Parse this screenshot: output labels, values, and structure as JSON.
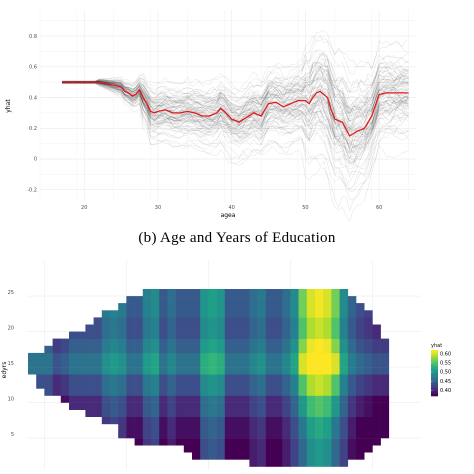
{
  "caption": "(b) Age and Years of Education",
  "chart_data": [
    {
      "type": "line",
      "description_panel": "top",
      "xlabel": "agea",
      "ylabel": "yhat",
      "xlim": [
        14,
        65
      ],
      "ylim": [
        -0.28,
        0.97
      ],
      "x_ticks": [
        20,
        30,
        40,
        50,
        60
      ],
      "y_ticks": [
        -0.2,
        0.0,
        0.2,
        0.4,
        0.6,
        0.8
      ],
      "y_tick_labels": [
        "-0.2",
        "0",
        "0.2",
        "0.4",
        "0.6",
        "0.8"
      ],
      "grid": true,
      "series": [
        {
          "role": "average",
          "color": "#e41a1c",
          "x": [
            17,
            20,
            22,
            23,
            24,
            25,
            25.5,
            26,
            26.5,
            27,
            27.5,
            28,
            28.5,
            29,
            29.5,
            30,
            31,
            32,
            33,
            34,
            35,
            36,
            37,
            38,
            38.5,
            39,
            40,
            41,
            42,
            43,
            44,
            45,
            46,
            47,
            48,
            49,
            50,
            50.5,
            51,
            51.5,
            52,
            52.5,
            53,
            53.5,
            54,
            55,
            56,
            57,
            58,
            59,
            60,
            61,
            62,
            63,
            64
          ],
          "y": [
            0.5,
            0.5,
            0.5,
            0.49,
            0.48,
            0.47,
            0.44,
            0.43,
            0.41,
            0.42,
            0.45,
            0.4,
            0.36,
            0.31,
            0.3,
            0.31,
            0.32,
            0.3,
            0.3,
            0.31,
            0.3,
            0.28,
            0.28,
            0.3,
            0.33,
            0.31,
            0.26,
            0.24,
            0.27,
            0.3,
            0.28,
            0.36,
            0.37,
            0.34,
            0.36,
            0.38,
            0.38,
            0.36,
            0.4,
            0.43,
            0.44,
            0.42,
            0.4,
            0.32,
            0.26,
            0.24,
            0.15,
            0.18,
            0.2,
            0.28,
            0.42,
            0.43,
            0.43,
            0.43,
            0.43
          ]
        }
      ],
      "ice_curves": {
        "role": "individual",
        "color": "#000000"
      }
    },
    {
      "type": "heatmap",
      "description_panel": "bottom",
      "xlabel": "",
      "ylabel": "edyrs",
      "y_ticks": [
        5,
        10,
        15,
        20,
        25
      ],
      "legend_title": "yhat",
      "legend_position": "right",
      "legend_ticks": [
        0.4,
        0.45,
        0.5,
        0.55,
        0.6
      ],
      "legend_tick_labels": [
        "0.40",
        "0.45",
        "0.50",
        "0.55",
        "0.60"
      ],
      "colormap": "viridis",
      "value_range": [
        0.37,
        0.62
      ],
      "age_columns": [
        [
          19,
          14,
          16
        ],
        [
          20,
          12,
          16
        ],
        [
          21,
          11,
          17
        ],
        [
          22,
          11,
          18
        ],
        [
          23,
          10,
          18
        ],
        [
          24,
          9,
          19
        ],
        [
          25,
          9,
          19
        ],
        [
          26,
          8,
          20
        ],
        [
          27,
          8,
          21
        ],
        [
          28,
          7,
          22
        ],
        [
          29,
          7,
          22
        ],
        [
          30,
          5,
          23
        ],
        [
          31,
          5,
          24
        ],
        [
          32,
          4,
          24
        ],
        [
          33,
          4,
          25
        ],
        [
          34,
          4,
          25
        ],
        [
          35,
          4,
          25
        ],
        [
          36,
          4,
          25
        ],
        [
          37,
          4,
          25
        ],
        [
          38,
          3,
          25
        ],
        [
          39,
          2,
          25
        ],
        [
          40,
          2,
          25
        ],
        [
          41,
          2,
          25
        ],
        [
          42,
          2,
          25
        ],
        [
          43,
          2,
          25
        ],
        [
          44,
          2,
          25
        ],
        [
          45,
          2,
          25
        ],
        [
          46,
          1,
          25
        ],
        [
          47,
          1,
          25
        ],
        [
          48,
          1,
          25
        ],
        [
          49,
          1,
          25
        ],
        [
          50,
          1,
          25
        ],
        [
          51,
          1,
          25
        ],
        [
          52,
          1,
          25
        ],
        [
          53,
          1,
          25
        ],
        [
          54,
          1,
          25
        ],
        [
          55,
          1,
          25
        ],
        [
          56,
          1,
          25
        ],
        [
          57,
          1,
          25
        ],
        [
          58,
          2,
          24
        ],
        [
          59,
          2,
          23
        ],
        [
          60,
          3,
          22
        ],
        [
          61,
          4,
          20
        ],
        [
          62,
          5,
          18
        ]
      ]
    }
  ]
}
